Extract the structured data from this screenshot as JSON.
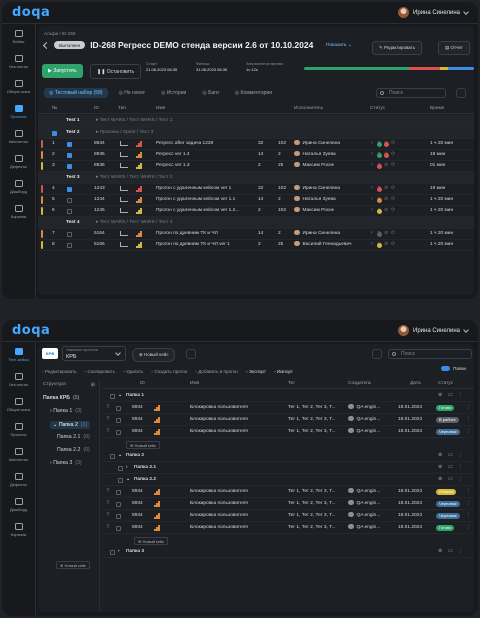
{
  "brand": "doqa",
  "user_name": "Ирина Синелина",
  "colors": {
    "accent": "#45a8ff",
    "green": "#2ea36a",
    "red": "#d9534f",
    "orange": "#e0893a",
    "yellow": "#d7b93a",
    "gray": "#5b6169"
  },
  "sidebar1": [
    {
      "label": "Бейзы",
      "icon": "box-icon"
    },
    {
      "label": "Чек-листы",
      "icon": "checklist-icon"
    },
    {
      "label": "Общие шаги",
      "icon": "steps-icon"
    },
    {
      "label": "Прогоны",
      "icon": "play-icon",
      "active": true
    },
    {
      "label": "Автотесты",
      "icon": "code-icon"
    },
    {
      "label": "Дефекты",
      "icon": "bug-icon"
    },
    {
      "label": "Дашборд",
      "icon": "dashboard-icon"
    },
    {
      "label": "Корзина",
      "icon": "trash-icon"
    }
  ],
  "sidebar2": [
    {
      "label": "Тест-кейсы",
      "icon": "testcase-icon",
      "active": true
    },
    {
      "label": "Чек-листы",
      "icon": "checklist-icon"
    },
    {
      "label": "Общие шаги",
      "icon": "steps-icon"
    },
    {
      "label": "Прогоны",
      "icon": "play-icon"
    },
    {
      "label": "Автотесты",
      "icon": "code-icon"
    },
    {
      "label": "Дефекты",
      "icon": "bug-icon"
    },
    {
      "label": "Дашборд",
      "icon": "dashboard-icon"
    },
    {
      "label": "Корзина",
      "icon": "trash-icon"
    }
  ],
  "run": {
    "breadcrumb": "Альфа / ID-268",
    "status": "Выполнен",
    "title": "ID-268 Регресс DEMO стенда версии 2.6 от 10.10.2024",
    "show_label": "Показать",
    "edit_label": "Редактировать",
    "report_label": "Отчет",
    "start_label": "Запустить",
    "stop_label": "Остановить",
    "start_caption": "Старт:",
    "start_value": "21.08.2023 08:35",
    "finish_caption": "Финиш:",
    "finish_value": "31.08.2023 08:35",
    "spent_caption": "Затраченное время:",
    "spent_value": "1ч 12с",
    "progress": [
      {
        "fraction": 0.62,
        "color": "#2ea36a"
      },
      {
        "fraction": 0.18,
        "color": "#d9534f"
      },
      {
        "fraction": 0.05,
        "color": "#d7b93a"
      },
      {
        "fraction": 0.15,
        "color": "#3d8ce6"
      }
    ],
    "tabs": [
      {
        "label": "Тестовый набор (58)",
        "active": true
      },
      {
        "label": "Не начат"
      },
      {
        "label": "Истории"
      },
      {
        "label": "Баги"
      },
      {
        "label": "Комментарии"
      }
    ],
    "search_placeholder": "Поиск",
    "columns": {
      "num": "№",
      "id": "ID",
      "type": "Тип",
      "name": "Имя",
      "executor": "Исполнитель",
      "status": "Статус",
      "time": "Время"
    },
    "rows": [
      {
        "kind": "group",
        "label": "Test 1",
        "path": "▸ Тест WARS / Тест WARS / Тест 1"
      },
      {
        "kind": "group",
        "label": "Test 2",
        "path": "▸ Прогоны / Sprint / Тест 3",
        "checked": true
      },
      {
        "num": "1",
        "id": "8934",
        "name": "Регресс after задача 1228",
        "a": "32",
        "b": "102",
        "executor": "Ирина Синелина",
        "time": "1 ч 20 мин",
        "checked": true,
        "level": "#d9534f",
        "status": [
          "#2ea36a",
          "#d9534f"
        ]
      },
      {
        "num": "2",
        "id": "8935",
        "name": "Регресс ver 1.4",
        "a": "14",
        "b": "2",
        "executor": "Наталья Зуева",
        "time": "18 мин",
        "checked": true,
        "level": "#e0893a",
        "status": [
          "#2ea36a",
          "#d9534f"
        ]
      },
      {
        "num": "3",
        "id": "8936",
        "name": "Регресс ver 1.3",
        "a": "2",
        "b": "25",
        "executor": "Максим Росин",
        "time": "01 мин",
        "checked": true,
        "level": "#d7b93a",
        "status": [
          "#d9534f"
        ]
      },
      {
        "kind": "group",
        "label": "Test 3",
        "path": "▸ Тест WARS / Тест WARS / Тест 2"
      },
      {
        "num": "4",
        "id": "1243",
        "name": "Прогон с удаленным кейсом ver 1",
        "a": "32",
        "b": "102",
        "executor": "Ирина Синелина",
        "time": "19 мин",
        "checked": true,
        "level": "#d9534f",
        "status": [
          "#d9534f"
        ]
      },
      {
        "num": "5",
        "id": "1244",
        "name": "Прогон с удаленным кейсом ver 1.1",
        "a": "14",
        "b": "2",
        "executor": "Наталья Зуева",
        "time": "1 ч 20 мин",
        "level": "#e0893a",
        "status": [
          "#e0893a"
        ]
      },
      {
        "num": "6",
        "id": "1245",
        "name": "Прогон с удаленным кейсом ver 1.2...",
        "a": "2",
        "b": "102",
        "executor": "Максим Росин",
        "time": "1 ч 20 мин",
        "level": "#d7b93a",
        "status": [
          "#d7b93a"
        ]
      },
      {
        "kind": "group",
        "label": "Test 4",
        "path": "▸ Тест WARS / Тест WARS / Тест 4"
      },
      {
        "num": "7",
        "id": "5164",
        "name": "Прогон по древним ТК и ЧЛ",
        "a": "14",
        "b": "2",
        "executor": "Ирина Синелина",
        "time": "1 ч 20 мин",
        "level": "#e0893a",
        "status": [
          "#5b6169"
        ]
      },
      {
        "num": "8",
        "id": "5165",
        "name": "Прогон по древним ТК и ЧЛ ver 1",
        "a": "2",
        "b": "25",
        "executor": "Василий Геннадьевич",
        "time": "1 ч 20 мин",
        "level": "#d7b93a",
        "status": [
          "#d7b93a"
        ]
      }
    ]
  },
  "cases": {
    "project_caption": "Название проектов",
    "project_value": "КРБ",
    "new_case": "Новый кейс",
    "search_placeholder": "Поиск",
    "toolbar": [
      "Редактировать",
      "Скопировать",
      "Удалить",
      "Создать прогон",
      "Добавить в прогон",
      "Экспорт",
      "Импорт"
    ],
    "folders_label": "Папки",
    "tree_title": "Структура",
    "tree": [
      {
        "label": "Папка КРБ",
        "count": "(5)",
        "indent": 0,
        "bold": true
      },
      {
        "label": "Папка 1",
        "count": "(3)",
        "indent": 1,
        "arrow": "›"
      },
      {
        "label": "Папка 2",
        "count": "(1)",
        "indent": 1,
        "arrow": "⌄",
        "active": true
      },
      {
        "label": "Папка 2.1",
        "count": "(0)",
        "indent": 2
      },
      {
        "label": "Папка 2.2",
        "count": "(0)",
        "indent": 2
      },
      {
        "label": "Папка 3",
        "count": "(3)",
        "indent": 1,
        "arrow": "›"
      }
    ],
    "columns": {
      "id": "ID",
      "name": "Имя",
      "tags": "Тег",
      "creator": "Создатель",
      "date": "Дата",
      "status": "Статус"
    },
    "rows": [
      {
        "kind": "folder",
        "label": "Папка 1",
        "indent": 0
      },
      {
        "id": "8934",
        "name": "Блокировка пользователя",
        "tags": "Тег 1, Тег 2, Тег 3, Т...",
        "creator": "QA engin...",
        "date": "18.01.2023",
        "status": "Готово",
        "status_color": "#2ea36a"
      },
      {
        "id": "8934",
        "name": "Блокировка пользователя",
        "tags": "Тег 1, Тег 2, Тег 3, Т...",
        "creator": "QA engin...",
        "date": "18.01.2023",
        "status": "В работе",
        "status_color": "#5b6169"
      },
      {
        "id": "8934",
        "name": "Блокировка пользователя",
        "tags": "Тег 1, Тег 2, Тег 3, Т...",
        "creator": "QA engin...",
        "date": "18.01.2023",
        "status": "Черновик",
        "status_color": "#3e6f9a"
      },
      {
        "kind": "add",
        "label": "Новый кейс",
        "indent": 0
      },
      {
        "kind": "folder",
        "label": "Папка 2",
        "indent": 0
      },
      {
        "kind": "folder",
        "label": "Папка 2.1",
        "indent": 1,
        "arrow": "›"
      },
      {
        "kind": "folder",
        "label": "Папка 2.2",
        "indent": 1,
        "arrow": "⌄"
      },
      {
        "id": "8934",
        "name": "Блокировка пользователя",
        "tags": "Тег 1, Тег 2, Тег 3, Т...",
        "creator": "QA engin...",
        "date": "18.01.2023",
        "status": "Отмена",
        "status_color": "#d7b93a"
      },
      {
        "id": "8934",
        "name": "Блокировка пользователя",
        "tags": "Тег 1, Тег 2, Тег 3, Т...",
        "creator": "QA engin...",
        "date": "18.01.2023",
        "status": "Черновик",
        "status_color": "#3e6f9a"
      },
      {
        "id": "8934",
        "name": "Блокировка пользователя",
        "tags": "Тег 1, Тег 2, Тег 3, Т...",
        "creator": "QA engin...",
        "date": "18.01.2023",
        "status": "Черновик",
        "status_color": "#3e6f9a"
      },
      {
        "id": "8934",
        "name": "Блокировка пользователя",
        "tags": "Тег 1, Тег 2, Тег 3, Т...",
        "creator": "QA engin...",
        "date": "18.01.2023",
        "status": "Готово",
        "status_color": "#2ea36a"
      },
      {
        "kind": "add",
        "label": "Новый кейс",
        "indent": 1
      },
      {
        "kind": "folder",
        "label": "Папка 3",
        "indent": 0,
        "arrow": "›"
      },
      {
        "kind": "add",
        "label": "Новый кейс",
        "indent": -1
      }
    ]
  }
}
